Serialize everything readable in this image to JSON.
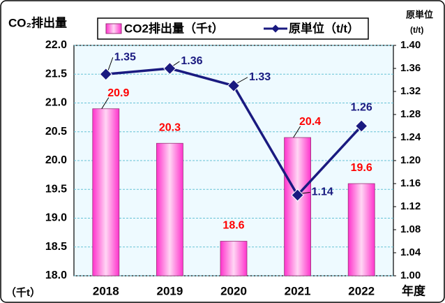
{
  "chart_data": {
    "type": "bar_line",
    "y_label": "CO₂排出量",
    "y2_label": [
      "原単位",
      "(t/t)"
    ],
    "y_unit": "（千t）",
    "x_label": "年度",
    "categories": [
      "2018",
      "2019",
      "2020",
      "2021",
      "2022"
    ],
    "series": [
      {
        "name": "CO2排出量（千t）",
        "color": "#ff33cc",
        "type": "bar",
        "values": [
          20.9,
          20.3,
          18.6,
          20.4,
          19.6
        ]
      },
      {
        "name": "原単位（t/t）",
        "color": "#1a1a80",
        "type": "line",
        "axis": "y2",
        "values": [
          1.35,
          1.36,
          1.33,
          1.14,
          1.26
        ]
      }
    ],
    "ylim": [
      18.0,
      22.0
    ],
    "yticks": [
      {
        "value": 18,
        "label": "18.0"
      },
      18.5,
      {
        "value": 19,
        "label": "19.0"
      },
      19.5,
      {
        "value": 20,
        "label": "20.0"
      },
      20.5,
      {
        "value": 21,
        "label": "21.0"
      },
      21.5,
      {
        "value": 22,
        "label": "22.0"
      }
    ],
    "y2lim": [
      1.0,
      1.4
    ],
    "y2ticks": [
      {
        "value": 1.0,
        "label": "1.00"
      },
      {
        "value": 1.04,
        "label": "1.04"
      },
      {
        "value": 1.08,
        "label": "1.08"
      },
      {
        "value": 1.12,
        "label": "1.12"
      },
      {
        "value": 1.16,
        "label": "1.16"
      },
      {
        "value": 1.2,
        "label": "1.20"
      },
      {
        "value": 1.24,
        "label": "1.24"
      },
      {
        "value": 1.28,
        "label": "1.28"
      },
      {
        "value": 1.32,
        "label": "1.32"
      },
      {
        "value": 1.36,
        "label": "1.36"
      },
      {
        "value": 1.4,
        "label": "1.40"
      }
    ],
    "grid": true
  }
}
